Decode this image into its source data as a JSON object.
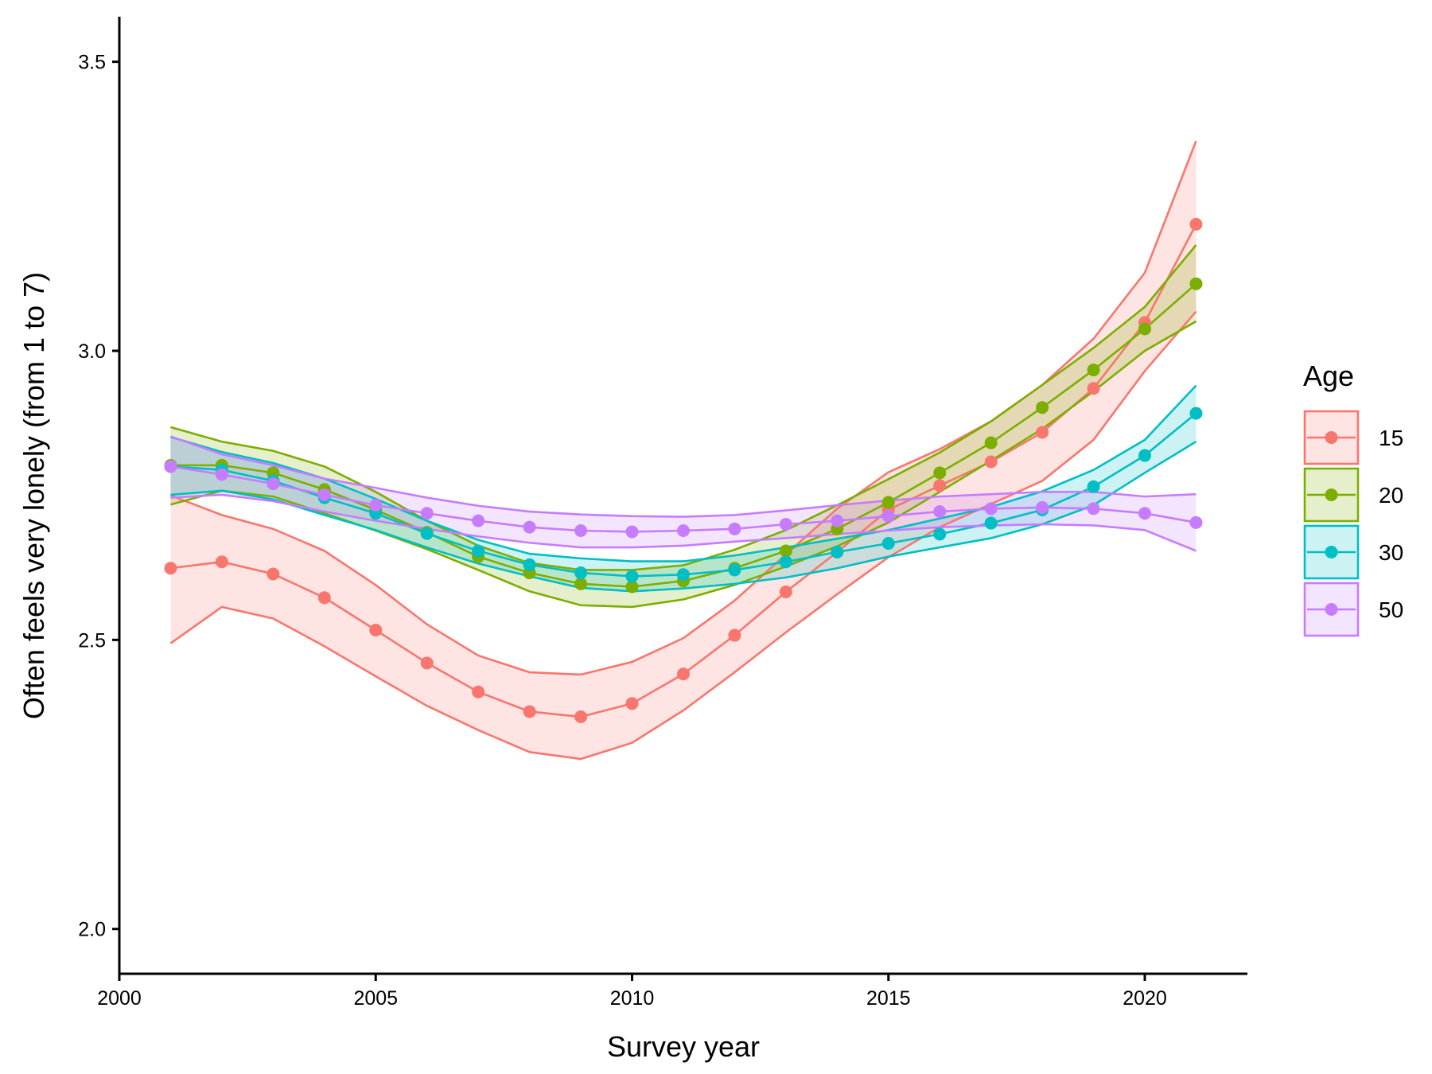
{
  "chart_data": {
    "type": "line",
    "title": "",
    "xlabel": "Survey year",
    "ylabel": "Often feels very lonely (from 1 to 7)",
    "xlim": [
      2000,
      2022
    ],
    "ylim": [
      1.923,
      3.578
    ],
    "xticks": [
      "2000",
      "2005",
      "2010",
      "2015",
      "2020"
    ],
    "yticks": [
      "2.0",
      "2.5",
      "3.0",
      "3.5"
    ],
    "grid": false,
    "legend": {
      "title": "Age",
      "placement": "right"
    },
    "x": [
      2001,
      2002,
      2003,
      2004,
      2005,
      2006,
      2007,
      2008,
      2009,
      2010,
      2011,
      2012,
      2013,
      2014,
      2015,
      2016,
      2017,
      2018,
      2019,
      2020,
      2021
    ],
    "series": [
      {
        "name": "15",
        "color": "#F8766D",
        "values": [
          2.624,
          2.635,
          2.614,
          2.573,
          2.517,
          2.46,
          2.41,
          2.376,
          2.367,
          2.39,
          2.441,
          2.508,
          2.583,
          2.652,
          2.725,
          2.767,
          2.808,
          2.859,
          2.935,
          3.049,
          3.219
        ],
        "upper": [
          2.75,
          2.716,
          2.692,
          2.654,
          2.595,
          2.527,
          2.473,
          2.444,
          2.44,
          2.462,
          2.503,
          2.568,
          2.648,
          2.727,
          2.79,
          2.83,
          2.878,
          2.941,
          3.021,
          3.135,
          3.363
        ],
        "lower": [
          2.494,
          2.557,
          2.537,
          2.489,
          2.437,
          2.386,
          2.344,
          2.306,
          2.294,
          2.322,
          2.378,
          2.444,
          2.513,
          2.579,
          2.643,
          2.695,
          2.735,
          2.775,
          2.846,
          2.965,
          3.068
        ]
      },
      {
        "name": "20",
        "color": "#7CAE00",
        "values": [
          2.802,
          2.802,
          2.789,
          2.76,
          2.725,
          2.686,
          2.644,
          2.616,
          2.597,
          2.592,
          2.602,
          2.624,
          2.654,
          2.692,
          2.738,
          2.789,
          2.841,
          2.902,
          2.967,
          3.038,
          3.116
        ],
        "upper": [
          2.868,
          2.843,
          2.827,
          2.8,
          2.756,
          2.706,
          2.663,
          2.633,
          2.621,
          2.621,
          2.629,
          2.656,
          2.69,
          2.733,
          2.778,
          2.824,
          2.878,
          2.941,
          3.005,
          3.076,
          3.183
        ],
        "lower": [
          2.734,
          2.758,
          2.748,
          2.719,
          2.689,
          2.657,
          2.621,
          2.584,
          2.56,
          2.557,
          2.57,
          2.595,
          2.627,
          2.662,
          2.703,
          2.756,
          2.81,
          2.865,
          2.93,
          3.0,
          3.051
        ]
      },
      {
        "name": "30",
        "color": "#00BFC4",
        "values": [
          2.8,
          2.794,
          2.775,
          2.746,
          2.719,
          2.684,
          2.654,
          2.63,
          2.616,
          2.61,
          2.613,
          2.621,
          2.635,
          2.652,
          2.667,
          2.683,
          2.702,
          2.725,
          2.765,
          2.819,
          2.892
        ],
        "upper": [
          2.851,
          2.825,
          2.806,
          2.779,
          2.744,
          2.706,
          2.673,
          2.649,
          2.641,
          2.636,
          2.636,
          2.646,
          2.66,
          2.675,
          2.69,
          2.71,
          2.73,
          2.757,
          2.794,
          2.846,
          2.94
        ],
        "lower": [
          2.751,
          2.758,
          2.743,
          2.716,
          2.69,
          2.66,
          2.632,
          2.61,
          2.59,
          2.584,
          2.589,
          2.597,
          2.608,
          2.624,
          2.644,
          2.66,
          2.676,
          2.7,
          2.733,
          2.789,
          2.843
        ]
      },
      {
        "name": "50",
        "color": "#C77CFF",
        "values": [
          2.8,
          2.786,
          2.77,
          2.751,
          2.733,
          2.719,
          2.706,
          2.695,
          2.689,
          2.687,
          2.689,
          2.692,
          2.7,
          2.706,
          2.714,
          2.722,
          2.727,
          2.729,
          2.727,
          2.719,
          2.703
        ],
        "upper": [
          2.852,
          2.821,
          2.802,
          2.779,
          2.763,
          2.746,
          2.732,
          2.722,
          2.717,
          2.714,
          2.713,
          2.716,
          2.724,
          2.733,
          2.741,
          2.748,
          2.752,
          2.756,
          2.756,
          2.748,
          2.752
        ],
        "lower": [
          2.746,
          2.751,
          2.74,
          2.722,
          2.706,
          2.692,
          2.679,
          2.668,
          2.66,
          2.66,
          2.663,
          2.67,
          2.676,
          2.683,
          2.689,
          2.695,
          2.698,
          2.7,
          2.698,
          2.69,
          2.654
        ]
      }
    ]
  }
}
